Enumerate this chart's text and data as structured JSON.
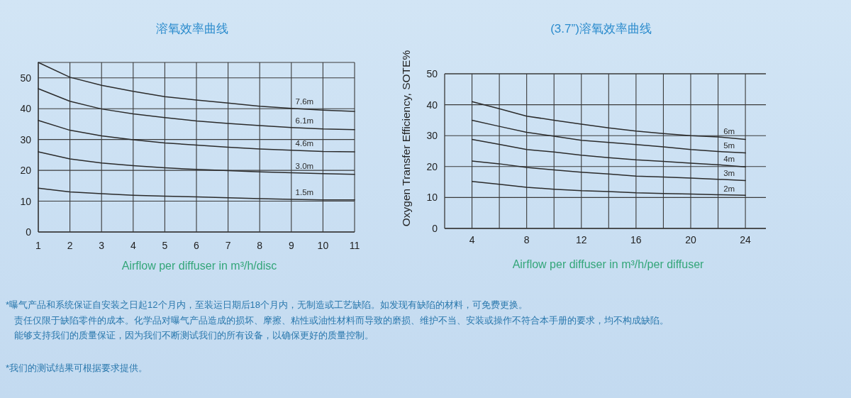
{
  "chart_data": [
    {
      "type": "line",
      "title": "溶氧效率曲线",
      "xlabel": "Airflow per diffuser in m³/h/disc",
      "x": [
        1,
        2,
        3,
        4,
        5,
        6,
        7,
        8,
        9,
        10,
        11
      ],
      "xlim": [
        1,
        11
      ],
      "xticks": [
        1,
        2,
        3,
        4,
        5,
        6,
        7,
        8,
        9,
        10,
        11
      ],
      "ylim": [
        0,
        55
      ],
      "yticks": [
        0,
        10,
        20,
        30,
        40,
        50
      ],
      "grid": true,
      "series": [
        {
          "name": "7.6m",
          "color": "#2b2b2b",
          "values": [
            55.0,
            50.2,
            47.6,
            45.6,
            43.9,
            42.8,
            41.8,
            40.8,
            40.1,
            39.5,
            39.1
          ]
        },
        {
          "name": "6.1m",
          "color": "#2b2b2b",
          "values": [
            46.5,
            42.4,
            39.9,
            38.3,
            37.1,
            36.0,
            35.2,
            34.5,
            33.9,
            33.4,
            33.2
          ]
        },
        {
          "name": "4.6m",
          "color": "#2b2b2b",
          "values": [
            36.2,
            33.0,
            31.2,
            29.9,
            28.9,
            28.2,
            27.5,
            26.9,
            26.5,
            26.1,
            26.0
          ]
        },
        {
          "name": "3.0m",
          "color": "#2b2b2b",
          "values": [
            26.0,
            23.7,
            22.4,
            21.5,
            20.8,
            20.3,
            19.9,
            19.5,
            19.2,
            18.9,
            18.7
          ]
        },
        {
          "name": "1.5m",
          "color": "#2b2b2b",
          "values": [
            14.2,
            13.0,
            12.4,
            11.9,
            11.6,
            11.4,
            11.1,
            10.8,
            10.6,
            10.4,
            10.4
          ]
        }
      ]
    },
    {
      "type": "line",
      "title": "(3.7”)溶氧效率曲线",
      "xlabel": "Airflow per diffuser in m³/h/per diffuser",
      "ylabel": "Oxygen Transfer Efficiency, SOTE%",
      "x": [
        4,
        6,
        8,
        10,
        12,
        14,
        16,
        18,
        20,
        22,
        24
      ],
      "xlim": [
        2,
        25.5
      ],
      "xticks": [
        4,
        {
          "value": 6,
          "label": null
        },
        8,
        {
          "value": 10,
          "label": null
        },
        12,
        {
          "value": 14,
          "label": null
        },
        16,
        {
          "value": 18,
          "label": null
        },
        20,
        {
          "value": 22,
          "label": null
        },
        24
      ],
      "ylim": [
        0,
        50
      ],
      "yticks": [
        0,
        10,
        20,
        30,
        40,
        50
      ],
      "grid": true,
      "series": [
        {
          "name": "6m",
          "color": "#2b2b2b",
          "values": [
            41.0,
            38.7,
            36.3,
            35.0,
            33.7,
            32.5,
            31.5,
            30.7,
            30.0,
            29.6,
            28.8
          ]
        },
        {
          "name": "5m",
          "color": "#2b2b2b",
          "values": [
            35.0,
            33.0,
            31.1,
            29.8,
            28.5,
            27.8,
            27.1,
            26.4,
            25.5,
            24.9,
            24.4
          ]
        },
        {
          "name": "4m",
          "color": "#2b2b2b",
          "values": [
            28.8,
            27.2,
            25.5,
            24.7,
            23.7,
            22.9,
            22.2,
            21.7,
            21.1,
            20.6,
            19.9
          ]
        },
        {
          "name": "3m",
          "color": "#2b2b2b",
          "values": [
            21.8,
            20.9,
            19.7,
            18.9,
            18.2,
            17.6,
            16.9,
            16.6,
            16.3,
            15.9,
            15.5
          ]
        },
        {
          "name": "2m",
          "color": "#2b2b2b",
          "values": [
            15.2,
            14.3,
            13.3,
            12.7,
            12.2,
            11.9,
            11.5,
            11.3,
            11.1,
            10.9,
            10.7
          ]
        }
      ]
    },
    {
      "type": "other",
      "annotations": [
        "*曝气产品和系统保证自安装之日起12个月内，至装运日期后18个月内，无制造或工艺缺陷。如发现有缺陷的材料，可免费更换。",
        "责任仅限于缺陷零件的成本。化学品对曝气产品造成的损坏、摩擦、粘性或油性材料而导致的磨损、维护不当、安装或操作不符合本手册的要求，均不构成缺陷。",
        "能够支持我们的质量保证，因为我们不断测试我们的所有设备，以确保更好的质量控制。",
        "*我们的测试结果可根据要求提供。"
      ]
    }
  ]
}
